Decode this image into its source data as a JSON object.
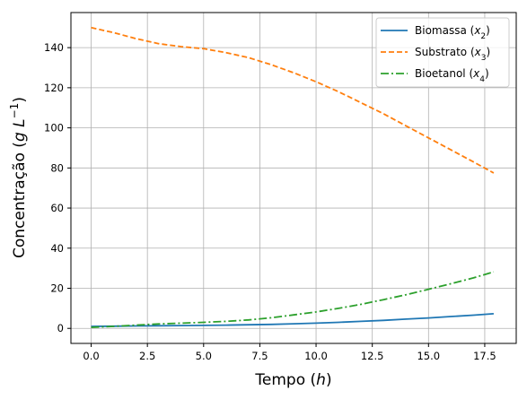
{
  "chart_data": {
    "type": "line",
    "xlabel": {
      "text": "Tempo ",
      "var": "h"
    },
    "ylabel": {
      "text": "Concentração ",
      "var": "g L",
      "sup": "−1"
    },
    "xlim": [
      -0.9,
      18.9
    ],
    "ylim": [
      -7.5,
      157.5
    ],
    "xticks": [
      0,
      2.5,
      5,
      7.5,
      10,
      12.5,
      15,
      17.5
    ],
    "xtick_labels": [
      "0.0",
      "2.5",
      "5.0",
      "7.5",
      "10.0",
      "12.5",
      "15.0",
      "17.5"
    ],
    "yticks": [
      0,
      20,
      40,
      60,
      80,
      100,
      120,
      140
    ],
    "ytick_labels": [
      "0",
      "20",
      "40",
      "60",
      "80",
      "100",
      "120",
      "140"
    ],
    "grid": true,
    "legend_position": "top-right",
    "x": [
      0,
      1,
      2,
      3,
      4,
      5,
      6,
      7,
      8,
      9,
      10,
      11,
      12,
      13,
      14,
      15,
      16,
      17,
      17.9
    ],
    "series": [
      {
        "name": "Biomassa",
        "var": "x",
        "sub": "2",
        "color": "#1f77b4",
        "style": "solid",
        "values": [
          1.0,
          1.1,
          1.2,
          1.3,
          1.4,
          1.5,
          1.6,
          1.8,
          2.0,
          2.3,
          2.6,
          3.0,
          3.5,
          4.0,
          4.6,
          5.2,
          5.9,
          6.6,
          7.3
        ]
      },
      {
        "name": "Substrato",
        "var": "x",
        "sub": "3",
        "color": "#ff7f0e",
        "style": "dashed",
        "values": [
          150.0,
          147.5,
          144.5,
          142.0,
          140.5,
          139.5,
          137.5,
          135.0,
          131.5,
          127.5,
          123.0,
          118.0,
          112.5,
          107.0,
          101.0,
          95.0,
          89.0,
          83.0,
          77.5
        ]
      },
      {
        "name": "Bioetanol",
        "var": "x",
        "sub": "4",
        "color": "#2ca02c",
        "style": "dashdot",
        "values": [
          0.5,
          1.0,
          1.6,
          2.2,
          2.6,
          3.0,
          3.5,
          4.2,
          5.3,
          6.7,
          8.2,
          10.0,
          12.0,
          14.3,
          16.8,
          19.5,
          22.3,
          25.2,
          28.2
        ]
      }
    ]
  }
}
